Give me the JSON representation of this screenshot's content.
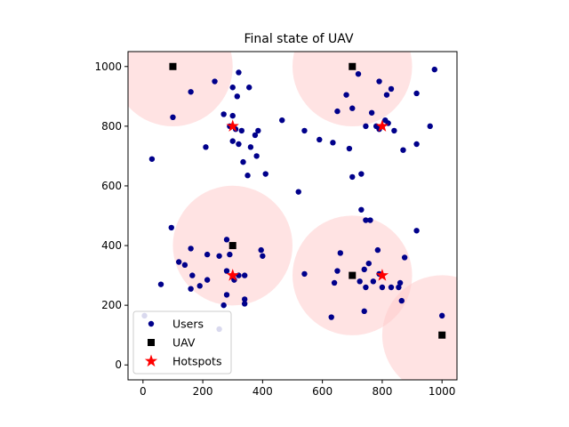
{
  "chart_data": {
    "type": "scatter",
    "title": "Final state of UAV",
    "xlabel": "",
    "ylabel": "",
    "xlim": [
      -50,
      1050
    ],
    "ylim": [
      -50,
      1050
    ],
    "xticks": [
      0,
      200,
      400,
      600,
      800,
      1000
    ],
    "yticks": [
      0,
      200,
      400,
      600,
      800,
      1000
    ],
    "grid": false,
    "legend_position": "lower-left",
    "coverage_radius": 200,
    "series": [
      {
        "name": "Users",
        "marker": "circle",
        "color": "#00008b",
        "points": [
          [
            100,
            830
          ],
          [
            160,
            915
          ],
          [
            240,
            950
          ],
          [
            270,
            840
          ],
          [
            300,
            930
          ],
          [
            320,
            980
          ],
          [
            315,
            900
          ],
          [
            355,
            930
          ],
          [
            300,
            835
          ],
          [
            310,
            790
          ],
          [
            330,
            785
          ],
          [
            300,
            750
          ],
          [
            290,
            800
          ],
          [
            320,
            740
          ],
          [
            335,
            680
          ],
          [
            360,
            730
          ],
          [
            375,
            770
          ],
          [
            385,
            785
          ],
          [
            380,
            700
          ],
          [
            410,
            640
          ],
          [
            350,
            635
          ],
          [
            465,
            820
          ],
          [
            540,
            785
          ],
          [
            590,
            755
          ],
          [
            635,
            745
          ],
          [
            690,
            725
          ],
          [
            700,
            860
          ],
          [
            680,
            905
          ],
          [
            650,
            850
          ],
          [
            700,
            630
          ],
          [
            730,
            640
          ],
          [
            745,
            800
          ],
          [
            720,
            975
          ],
          [
            790,
            950
          ],
          [
            815,
            905
          ],
          [
            830,
            925
          ],
          [
            765,
            845
          ],
          [
            810,
            820
          ],
          [
            780,
            800
          ],
          [
            790,
            790
          ],
          [
            820,
            810
          ],
          [
            840,
            785
          ],
          [
            870,
            720
          ],
          [
            915,
            910
          ],
          [
            915,
            740
          ],
          [
            975,
            990
          ],
          [
            960,
            800
          ],
          [
            210,
            730
          ],
          [
            30,
            690
          ],
          [
            520,
            580
          ],
          [
            95,
            460
          ],
          [
            160,
            390
          ],
          [
            215,
            370
          ],
          [
            255,
            365
          ],
          [
            280,
            420
          ],
          [
            290,
            370
          ],
          [
            120,
            345
          ],
          [
            140,
            335
          ],
          [
            165,
            300
          ],
          [
            190,
            265
          ],
          [
            160,
            255
          ],
          [
            215,
            285
          ],
          [
            280,
            315
          ],
          [
            300,
            295
          ],
          [
            305,
            285
          ],
          [
            320,
            300
          ],
          [
            340,
            300
          ],
          [
            395,
            385
          ],
          [
            400,
            365
          ],
          [
            280,
            235
          ],
          [
            270,
            200
          ],
          [
            340,
            220
          ],
          [
            340,
            205
          ],
          [
            60,
            270
          ],
          [
            5,
            165
          ],
          [
            255,
            120
          ],
          [
            730,
            520
          ],
          [
            760,
            485
          ],
          [
            745,
            485
          ],
          [
            660,
            375
          ],
          [
            650,
            315
          ],
          [
            640,
            275
          ],
          [
            630,
            160
          ],
          [
            540,
            305
          ],
          [
            700,
            300
          ],
          [
            725,
            280
          ],
          [
            740,
            320
          ],
          [
            755,
            340
          ],
          [
            745,
            260
          ],
          [
            770,
            280
          ],
          [
            785,
            385
          ],
          [
            790,
            305
          ],
          [
            800,
            260
          ],
          [
            830,
            260
          ],
          [
            855,
            260
          ],
          [
            860,
            275
          ],
          [
            875,
            360
          ],
          [
            865,
            215
          ],
          [
            740,
            180
          ],
          [
            915,
            450
          ],
          [
            1000,
            165
          ]
        ]
      },
      {
        "name": "UAV",
        "marker": "square",
        "color": "#000000",
        "points": [
          [
            100,
            1000
          ],
          [
            700,
            1000
          ],
          [
            300,
            400
          ],
          [
            700,
            300
          ],
          [
            1000,
            100
          ]
        ]
      },
      {
        "name": "Hotspots",
        "marker": "star",
        "color": "#ff0000",
        "points": [
          [
            300,
            800
          ],
          [
            800,
            800
          ],
          [
            300,
            300
          ],
          [
            800,
            300
          ]
        ]
      }
    ]
  }
}
